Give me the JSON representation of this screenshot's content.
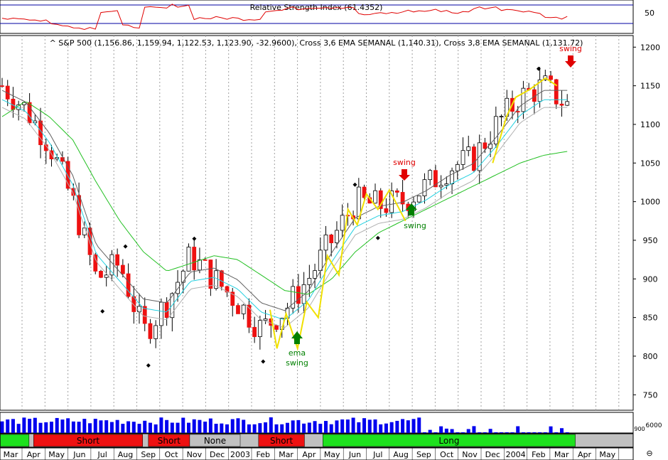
{
  "rsi_panel": {
    "title": "Relative Strength Index (61.4352)",
    "y_ticks": [
      50
    ],
    "y_range": [
      20,
      80
    ],
    "levels": [
      70,
      30
    ]
  },
  "price_panel": {
    "title": "^ S&P 500 (1,156.86, 1,159.94, 1,122.53, 1,123.90, -32.9600), Cross 3,6 EMA SEMANAL (1,140.31), Cross 3,8 EMA SEMANAL (1,131.72)",
    "y_ticks": [
      750,
      800,
      850,
      900,
      950,
      1000,
      1050,
      1100,
      1150,
      1200
    ],
    "y_range": [
      730,
      1215
    ],
    "annotations": [
      {
        "text": "swing",
        "date": "Jul 2003",
        "color": "#e00000",
        "arrow": "down"
      },
      {
        "text": "swing",
        "date": "Aug 2003",
        "color": "#008000",
        "arrow": "up"
      },
      {
        "text": "ema",
        "date": "Mar 2003",
        "color": "#008000",
        "arrow": "up"
      },
      {
        "text": "swing",
        "date": "Mar 2003",
        "color": "#008000",
        "arrow": "none"
      },
      {
        "text": "swing",
        "date": "Mar 2004",
        "color": "#e00000",
        "arrow": "down"
      }
    ]
  },
  "volume_panel": {
    "y_ticks": [
      "6000",
      "900"
    ]
  },
  "signal_bar": {
    "segments": [
      {
        "label": "",
        "state": "long"
      },
      {
        "label": "Short",
        "state": "short"
      },
      {
        "label": "Short",
        "state": "short"
      },
      {
        "label": "None",
        "state": "none"
      },
      {
        "label": "Short",
        "state": "short"
      },
      {
        "label": "Long",
        "state": "long"
      }
    ],
    "colors": {
      "long": "#1ee11e",
      "short": "#ee1111",
      "none": "#c0c0c0"
    }
  },
  "x_axis": {
    "labels": [
      "Mar",
      "Apr",
      "May",
      "Jun",
      "Jul",
      "Aug",
      "Sep",
      "Oct",
      "Nov",
      "Dec",
      "2003",
      "Feb",
      "Mar",
      "Apr",
      "May",
      "Jun",
      "Jul",
      "Aug",
      "Sep",
      "Oct",
      "Nov",
      "Dec",
      "2004",
      "Feb",
      "Mar",
      "Apr",
      "May"
    ]
  },
  "chart_data": {
    "type": "line",
    "title": "^ S&P 500 (1,156.86, 1,159.94, 1,122.53, 1,123.90, -32.9600), Cross 3,6 EMA SEMANAL (1,140.31), Cross 3,8 EMA SEMANAL (1,131.72)",
    "x": [
      "Mar 2002",
      "Apr 2002",
      "May 2002",
      "Jun 2002",
      "Jul 2002",
      "Aug 2002",
      "Sep 2002",
      "Oct 2002",
      "Nov 2002",
      "Dec 2002",
      "Jan 2003",
      "Feb 2003",
      "Mar 2003",
      "Apr 2003",
      "May 2003",
      "Jun 2003",
      "Jul 2003",
      "Aug 2003",
      "Sep 2003",
      "Oct 2003",
      "Nov 2003",
      "Dec 2003",
      "Jan 2004",
      "Feb 2004",
      "Mar 2004"
    ],
    "series": [
      {
        "values": [
          1150,
          1120,
          1075,
          1000,
          900,
          920,
          830,
          870,
          930,
          900,
          870,
          835,
          860,
          900,
          950,
          1000,
          995,
          1000,
          1020,
          1045,
          1055,
          1100,
          1135,
          1150,
          1125
        ]
      },
      {
        "values": [
          1140,
          1125,
          1085,
          1030,
          940,
          905,
          870,
          865,
          905,
          910,
          895,
          865,
          855,
          880,
          930,
          975,
          990,
          995,
          1010,
          1030,
          1045,
          1080,
          1120,
          1140,
          1140
        ]
      },
      {
        "values": [
          1110,
          1130,
          1110,
          1080,
          1025,
          975,
          935,
          910,
          920,
          930,
          925,
          905,
          885,
          880,
          900,
          935,
          960,
          975,
          990,
          1005,
          1020,
          1035,
          1050,
          1060,
          1065
        ]
      }
    ],
    "ylim": [
      730,
      1215
    ],
    "grid": true
  }
}
